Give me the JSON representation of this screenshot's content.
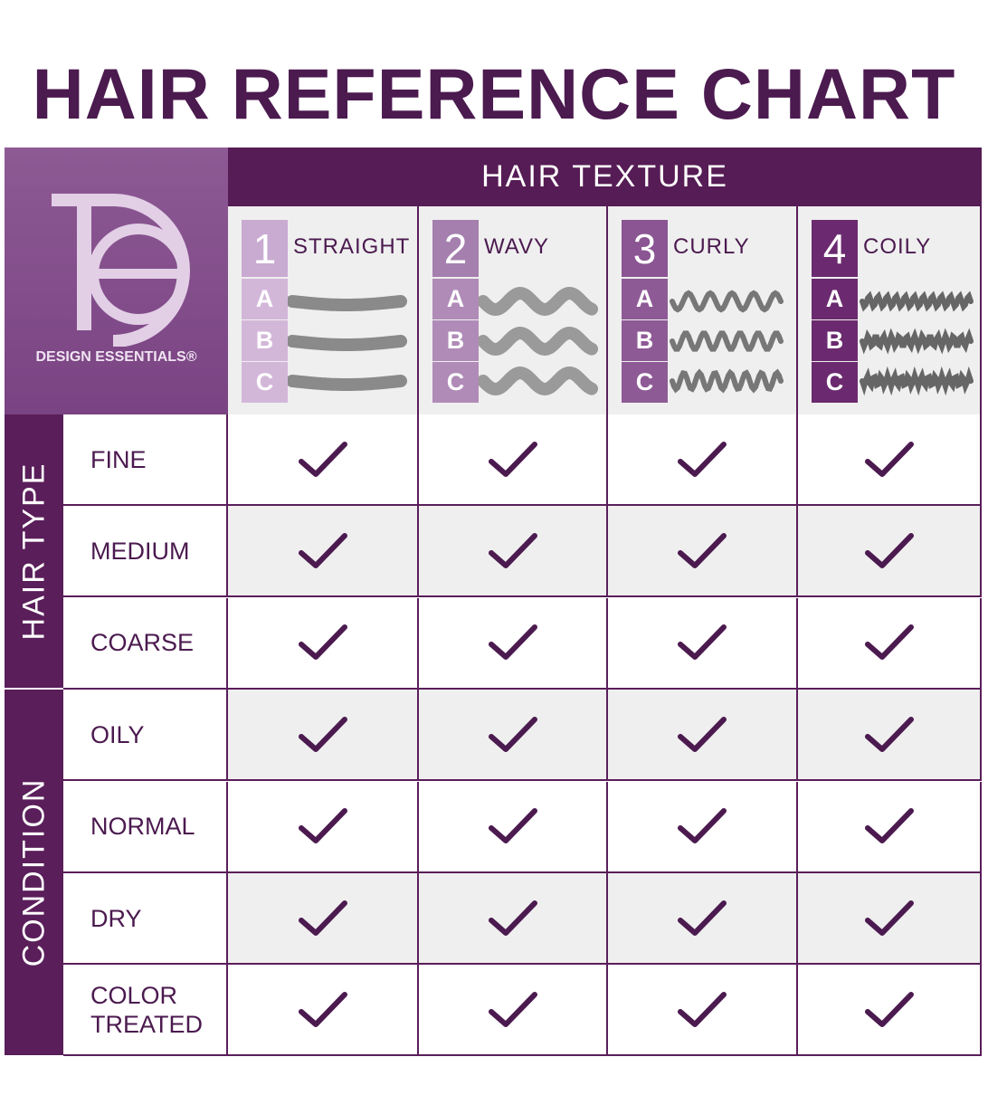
{
  "title": "HAIR REFERENCE CHART",
  "brand": "DESIGN ESSENTIALS®",
  "header": {
    "texture_label": "HAIR TEXTURE",
    "textures": [
      {
        "number": "1",
        "name": "STRAIGHT",
        "subtypes": [
          "A",
          "B",
          "C"
        ]
      },
      {
        "number": "2",
        "name": "WAVY",
        "subtypes": [
          "A",
          "B",
          "C"
        ]
      },
      {
        "number": "3",
        "name": "CURLY",
        "subtypes": [
          "A",
          "B",
          "C"
        ]
      },
      {
        "number": "4",
        "name": "COILY",
        "subtypes": [
          "A",
          "B",
          "C"
        ]
      }
    ]
  },
  "groups": [
    {
      "label": "HAIR TYPE",
      "rows": [
        "FINE",
        "MEDIUM",
        "COARSE"
      ]
    },
    {
      "label": "CONDITION",
      "rows": [
        "OILY",
        "NORMAL",
        "DRY",
        "COLOR TREATED"
      ]
    }
  ]
}
